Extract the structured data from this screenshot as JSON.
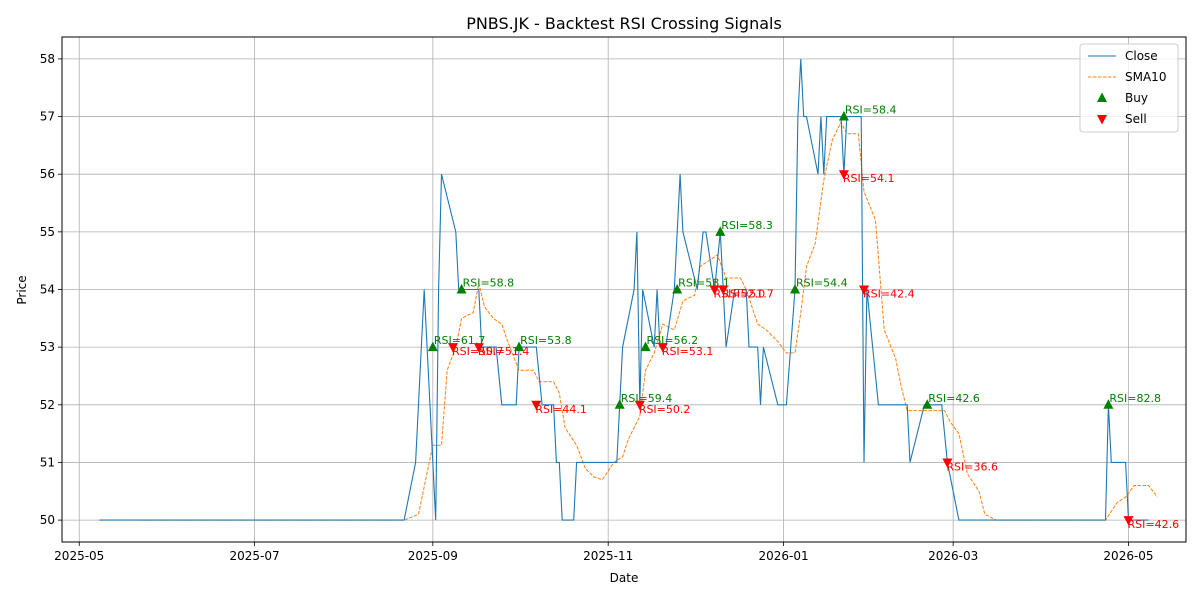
{
  "chart_data": {
    "type": "line",
    "title": "PNBS.JK - Backtest RSI Crossing Signals",
    "xlabel": "Date",
    "ylabel": "Price",
    "x_ticks": [
      "2025-05",
      "2025-07",
      "2025-09",
      "2025-11",
      "2026-01",
      "2026-03",
      "2026-05"
    ],
    "y_ticks": [
      50,
      51,
      52,
      53,
      54,
      55,
      56,
      57,
      58
    ],
    "xlim": [
      "2025-04-25",
      "2026-05-21"
    ],
    "ylim": [
      49.62,
      58.38
    ],
    "grid": true,
    "legend_position": "top-right",
    "colors": {
      "close": "#1f77b4",
      "sma10": "#ff7f0e",
      "buy": "#008000",
      "sell": "#ff0000"
    },
    "series": [
      {
        "name": "Close",
        "style": "solid",
        "points": [
          [
            "2025-05-08",
            50
          ],
          [
            "2025-08-22",
            50
          ],
          [
            "2025-08-26",
            51
          ],
          [
            "2025-08-29",
            54
          ],
          [
            "2025-09-02",
            50
          ],
          [
            "2025-09-03",
            54
          ],
          [
            "2025-09-04",
            56
          ],
          [
            "2025-09-09",
            55
          ],
          [
            "2025-09-10",
            54
          ],
          [
            "2025-09-17",
            54
          ],
          [
            "2025-09-18",
            53
          ],
          [
            "2025-09-23",
            53
          ],
          [
            "2025-09-25",
            52
          ],
          [
            "2025-09-30",
            52
          ],
          [
            "2025-10-01",
            53
          ],
          [
            "2025-10-07",
            53
          ],
          [
            "2025-10-09",
            52
          ],
          [
            "2025-10-13",
            52
          ],
          [
            "2025-10-14",
            51
          ],
          [
            "2025-10-15",
            51
          ],
          [
            "2025-10-16",
            50
          ],
          [
            "2025-10-20",
            50
          ],
          [
            "2025-10-21",
            51
          ],
          [
            "2025-11-04",
            51
          ],
          [
            "2025-11-06",
            53
          ],
          [
            "2025-11-10",
            54
          ],
          [
            "2025-11-11",
            55
          ],
          [
            "2025-11-12",
            52
          ],
          [
            "2025-11-13",
            54
          ],
          [
            "2025-11-17",
            53
          ],
          [
            "2025-11-18",
            54
          ],
          [
            "2025-11-19",
            53
          ],
          [
            "2025-11-21",
            53
          ],
          [
            "2025-11-24",
            54
          ],
          [
            "2025-11-26",
            56
          ],
          [
            "2025-11-27",
            55
          ],
          [
            "2025-12-02",
            54
          ],
          [
            "2025-12-04",
            55
          ],
          [
            "2025-12-05",
            55
          ],
          [
            "2025-12-08",
            54
          ],
          [
            "2025-12-10",
            55
          ],
          [
            "2025-12-11",
            54
          ],
          [
            "2025-12-12",
            53
          ],
          [
            "2025-12-15",
            54
          ],
          [
            "2025-12-19",
            54
          ],
          [
            "2025-12-20",
            53
          ],
          [
            "2025-12-23",
            53
          ],
          [
            "2025-12-24",
            52
          ],
          [
            "2025-12-25",
            53
          ],
          [
            "2025-12-30",
            52
          ],
          [
            "2026-01-02",
            52
          ],
          [
            "2026-01-05",
            54
          ],
          [
            "2026-01-06",
            57
          ],
          [
            "2026-01-07",
            58
          ],
          [
            "2026-01-08",
            57
          ],
          [
            "2026-01-09",
            57
          ],
          [
            "2026-01-13",
            56
          ],
          [
            "2026-01-14",
            57
          ],
          [
            "2026-01-15",
            56
          ],
          [
            "2026-01-16",
            57
          ],
          [
            "2026-01-21",
            57
          ],
          [
            "2026-01-22",
            56
          ],
          [
            "2026-01-23",
            57
          ],
          [
            "2026-01-28",
            57
          ],
          [
            "2026-01-29",
            51
          ],
          [
            "2026-01-30",
            54
          ],
          [
            "2026-02-03",
            52
          ],
          [
            "2026-02-13",
            52
          ],
          [
            "2026-02-14",
            51
          ],
          [
            "2026-02-19",
            52
          ],
          [
            "2026-02-25",
            52
          ],
          [
            "2026-02-27",
            51
          ],
          [
            "2026-03-03",
            50
          ],
          [
            "2026-04-23",
            50
          ],
          [
            "2026-04-24",
            52
          ],
          [
            "2026-04-25",
            51
          ],
          [
            "2026-04-30",
            51
          ],
          [
            "2026-05-01",
            50
          ],
          [
            "2026-05-08",
            50
          ]
        ]
      },
      {
        "name": "SMA10",
        "style": "dashed",
        "points": [
          [
            "2025-05-22",
            50
          ],
          [
            "2025-08-22",
            50
          ],
          [
            "2025-08-27",
            50.1
          ],
          [
            "2025-09-01",
            51.3
          ],
          [
            "2025-09-04",
            51.3
          ],
          [
            "2025-09-06",
            52.6
          ],
          [
            "2025-09-09",
            53
          ],
          [
            "2025-09-11",
            53.5
          ],
          [
            "2025-09-15",
            53.6
          ],
          [
            "2025-09-17",
            54.1
          ],
          [
            "2025-09-19",
            53.7
          ],
          [
            "2025-09-22",
            53.5
          ],
          [
            "2025-09-25",
            53.4
          ],
          [
            "2025-09-27",
            53.1
          ],
          [
            "2025-10-01",
            52.6
          ],
          [
            "2025-10-06",
            52.6
          ],
          [
            "2025-10-08",
            52.4
          ],
          [
            "2025-10-13",
            52.4
          ],
          [
            "2025-10-15",
            52.2
          ],
          [
            "2025-10-17",
            51.6
          ],
          [
            "2025-10-21",
            51.3
          ],
          [
            "2025-10-24",
            50.9
          ],
          [
            "2025-10-27",
            50.75
          ],
          [
            "2025-10-30",
            50.7
          ],
          [
            "2025-11-03",
            51
          ],
          [
            "2025-11-06",
            51.1
          ],
          [
            "2025-11-08",
            51.4
          ],
          [
            "2025-11-12",
            51.8
          ],
          [
            "2025-11-14",
            52.6
          ],
          [
            "2025-11-17",
            52.9
          ],
          [
            "2025-11-20",
            53.4
          ],
          [
            "2025-11-24",
            53.3
          ],
          [
            "2025-11-27",
            53.8
          ],
          [
            "2025-12-01",
            53.9
          ],
          [
            "2025-12-03",
            54.4
          ],
          [
            "2025-12-06",
            54.5
          ],
          [
            "2025-12-09",
            54.6
          ],
          [
            "2025-12-12",
            54.2
          ],
          [
            "2025-12-17",
            54.2
          ],
          [
            "2025-12-19",
            54
          ],
          [
            "2025-12-23",
            53.4
          ],
          [
            "2025-12-26",
            53.3
          ],
          [
            "2025-12-30",
            53.1
          ],
          [
            "2026-01-02",
            52.9
          ],
          [
            "2026-01-05",
            52.9
          ],
          [
            "2026-01-07",
            53.6
          ],
          [
            "2026-01-09",
            54.4
          ],
          [
            "2026-01-12",
            54.8
          ],
          [
            "2026-01-15",
            55.9
          ],
          [
            "2026-01-18",
            56.6
          ],
          [
            "2026-01-21",
            56.9
          ],
          [
            "2026-01-23",
            56.7
          ],
          [
            "2026-01-27",
            56.7
          ],
          [
            "2026-01-29",
            55.7
          ],
          [
            "2026-02-02",
            55.2
          ],
          [
            "2026-02-05",
            53.3
          ],
          [
            "2026-02-09",
            52.8
          ],
          [
            "2026-02-11",
            52.3
          ],
          [
            "2026-02-13",
            51.9
          ],
          [
            "2026-02-19",
            51.9
          ],
          [
            "2026-02-23",
            51.9
          ],
          [
            "2026-02-26",
            51.9
          ],
          [
            "2026-02-28",
            51.7
          ],
          [
            "2026-03-03",
            51.5
          ],
          [
            "2026-03-06",
            50.8
          ],
          [
            "2026-03-10",
            50.5
          ],
          [
            "2026-03-12",
            50.1
          ],
          [
            "2026-03-16",
            50
          ],
          [
            "2026-04-23",
            50
          ],
          [
            "2026-04-27",
            50.3
          ],
          [
            "2026-04-30",
            50.4
          ],
          [
            "2026-05-03",
            50.6
          ],
          [
            "2026-05-08",
            50.6
          ],
          [
            "2026-05-11",
            50.4
          ]
        ]
      }
    ],
    "buy_signals": [
      {
        "date": "2025-09-01",
        "price": 53,
        "label": "RSI=61.7"
      },
      {
        "date": "2025-09-11",
        "price": 54,
        "label": "RSI=58.8"
      },
      {
        "date": "2025-10-01",
        "price": 53,
        "label": "RSI=53.8"
      },
      {
        "date": "2025-11-05",
        "price": 52,
        "label": "RSI=59.4"
      },
      {
        "date": "2025-11-14",
        "price": 53,
        "label": "RSI=56.2"
      },
      {
        "date": "2025-11-25",
        "price": 54,
        "label": "RSI=58.1"
      },
      {
        "date": "2025-12-10",
        "price": 55,
        "label": "RSI=58.3"
      },
      {
        "date": "2026-01-05",
        "price": 54,
        "label": "RSI=54.4"
      },
      {
        "date": "2026-01-22",
        "price": 57,
        "label": "RSI=58.4"
      },
      {
        "date": "2026-02-20",
        "price": 52,
        "label": "RSI=42.6"
      },
      {
        "date": "2026-04-24",
        "price": 52,
        "label": "RSI=82.8"
      }
    ],
    "sell_signals": [
      {
        "date": "2025-09-08",
        "price": 53,
        "label": "RSI=50.7"
      },
      {
        "date": "2025-09-17",
        "price": 53,
        "label": "RSI=51.4"
      },
      {
        "date": "2025-10-07",
        "price": 52,
        "label": "RSI=44.1"
      },
      {
        "date": "2025-11-12",
        "price": 52,
        "label": "RSI=50.2"
      },
      {
        "date": "2025-11-20",
        "price": 53,
        "label": "RSI=53.1"
      },
      {
        "date": "2025-12-08",
        "price": 54,
        "label": "RSI=52.0"
      },
      {
        "date": "2025-12-11",
        "price": 54,
        "label": "RSI=51.7"
      },
      {
        "date": "2026-01-22",
        "price": 56,
        "label": "RSI=54.1"
      },
      {
        "date": "2026-01-29",
        "price": 54,
        "label": "RSI=42.4"
      },
      {
        "date": "2026-02-27",
        "price": 51,
        "label": "RSI=36.6"
      },
      {
        "date": "2026-05-01",
        "price": 50,
        "label": "RSI=42.6"
      }
    ],
    "legend": [
      {
        "label": "Close",
        "kind": "line"
      },
      {
        "label": "SMA10",
        "kind": "dashed"
      },
      {
        "label": "Buy",
        "kind": "buy"
      },
      {
        "label": "Sell",
        "kind": "sell"
      }
    ]
  }
}
